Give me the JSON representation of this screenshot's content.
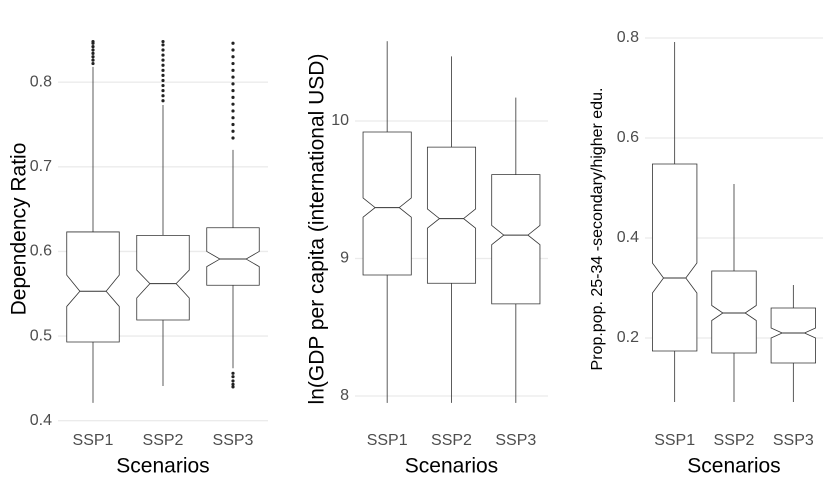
{
  "chart_data": [
    {
      "type": "box",
      "ylabel": "Dependency Ratio",
      "xlabel": "Scenarios",
      "categories": [
        "SSP1",
        "SSP2",
        "SSP3"
      ],
      "ylim": [
        0.389,
        0.864
      ],
      "yticks": [
        0.4,
        0.5,
        0.6,
        0.7,
        0.8
      ],
      "grid": true,
      "boxes": [
        {
          "min": 0.421,
          "q1": 0.493,
          "median": 0.553,
          "q3": 0.623,
          "max": 0.818,
          "notch_low": 0.535,
          "notch_high": 0.572,
          "outliers": [
            0.822,
            0.826,
            0.83,
            0.834,
            0.838,
            0.842,
            0.846,
            0.848
          ]
        },
        {
          "min": 0.441,
          "q1": 0.519,
          "median": 0.562,
          "q3": 0.619,
          "max": 0.773,
          "notch_low": 0.545,
          "notch_high": 0.578,
          "outliers": [
            0.778,
            0.784,
            0.79,
            0.796,
            0.802,
            0.808,
            0.814,
            0.82,
            0.826,
            0.832,
            0.838,
            0.844,
            0.848
          ]
        },
        {
          "min": 0.462,
          "q1": 0.56,
          "median": 0.591,
          "q3": 0.628,
          "max": 0.72,
          "notch_low": 0.582,
          "notch_high": 0.6,
          "outliers": [
            0.44,
            0.443,
            0.447,
            0.452,
            0.456,
            0.734,
            0.742,
            0.75,
            0.758,
            0.766,
            0.774,
            0.782,
            0.79,
            0.798,
            0.806,
            0.814,
            0.822,
            0.83,
            0.838,
            0.846
          ]
        }
      ]
    },
    {
      "type": "box",
      "ylabel": "ln(GDP per capita (international USD)",
      "xlabel": "Scenarios",
      "categories": [
        "SSP1",
        "SSP2",
        "SSP3"
      ],
      "ylim": [
        7.753,
        10.676
      ],
      "yticks": [
        8,
        9,
        10
      ],
      "grid": true,
      "boxes": [
        {
          "min": 7.95,
          "q1": 8.88,
          "median": 9.37,
          "q3": 9.92,
          "max": 10.58,
          "notch_low": 9.3,
          "notch_high": 9.44,
          "outliers": []
        },
        {
          "min": 7.95,
          "q1": 8.82,
          "median": 9.29,
          "q3": 9.81,
          "max": 10.47,
          "notch_low": 9.22,
          "notch_high": 9.36,
          "outliers": []
        },
        {
          "min": 7.95,
          "q1": 8.67,
          "median": 9.17,
          "q3": 9.61,
          "max": 10.17,
          "notch_low": 9.1,
          "notch_high": 9.24,
          "outliers": []
        }
      ]
    },
    {
      "type": "box",
      "ylabel": "Prop.pop. 25-34 -secondary/higher edu.",
      "xlabel": "Scenarios",
      "categories": [
        "SSP1",
        "SSP2",
        "SSP3"
      ],
      "ylim": [
        0.016,
        0.82
      ],
      "yticks": [
        0.2,
        0.4,
        0.6,
        0.8
      ],
      "grid": true,
      "boxes": [
        {
          "min": 0.072,
          "q1": 0.174,
          "median": 0.32,
          "q3": 0.548,
          "max": 0.792,
          "notch_low": 0.29,
          "notch_high": 0.35,
          "outliers": []
        },
        {
          "min": 0.072,
          "q1": 0.17,
          "median": 0.25,
          "q3": 0.334,
          "max": 0.508,
          "notch_low": 0.235,
          "notch_high": 0.265,
          "outliers": []
        },
        {
          "min": 0.072,
          "q1": 0.15,
          "median": 0.21,
          "q3": 0.26,
          "max": 0.306,
          "notch_low": 0.2,
          "notch_high": 0.22,
          "outliers": []
        }
      ]
    }
  ]
}
